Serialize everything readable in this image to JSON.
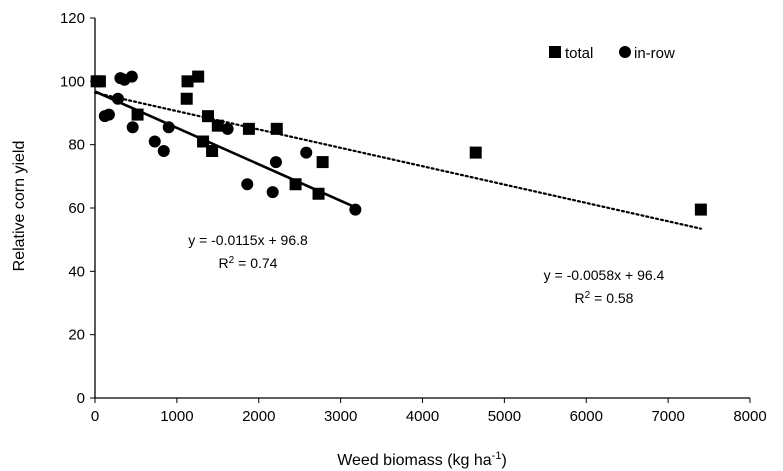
{
  "chart_data": {
    "type": "scatter",
    "title": "",
    "xlabel": "Weed biomass (kg ha",
    "xlabel_sup": "-1",
    "xlabel_end": ")",
    "ylabel": "Relative corn yield",
    "xlim": [
      0,
      8000
    ],
    "ylim": [
      0,
      120
    ],
    "x_ticks": [
      "0",
      "1000",
      "2000",
      "3000",
      "4000",
      "5000",
      "6000",
      "7000",
      "8000"
    ],
    "y_ticks": [
      "0",
      "20",
      "40",
      "60",
      "80",
      "100",
      "120"
    ],
    "grid": false,
    "legend_position": "top-right",
    "series": [
      {
        "name": "total",
        "marker": "square",
        "color": "#000000",
        "points": [
          {
            "x": 20,
            "y": 100
          },
          {
            "x": 60,
            "y": 100
          },
          {
            "x": 520,
            "y": 89.5
          },
          {
            "x": 1120,
            "y": 94.5
          },
          {
            "x": 1130,
            "y": 100
          },
          {
            "x": 1260,
            "y": 101.5
          },
          {
            "x": 1320,
            "y": 81
          },
          {
            "x": 1380,
            "y": 89
          },
          {
            "x": 1430,
            "y": 78
          },
          {
            "x": 1500,
            "y": 86
          },
          {
            "x": 1880,
            "y": 85
          },
          {
            "x": 2220,
            "y": 85
          },
          {
            "x": 2450,
            "y": 67.5
          },
          {
            "x": 2730,
            "y": 64.5
          },
          {
            "x": 2780,
            "y": 74.5
          },
          {
            "x": 4650,
            "y": 77.5
          },
          {
            "x": 7400,
            "y": 59.5
          }
        ],
        "trendline": {
          "style": "dotted",
          "slope": -0.0058,
          "intercept": 96.4,
          "x_range": [
            0,
            7400
          ]
        },
        "equation": "y = -0.0058x + 96.4",
        "r2_prefix": "R",
        "r2_sup": "2",
        "r2_value": " = 0.58"
      },
      {
        "name": "in-row",
        "marker": "circle",
        "color": "#000000",
        "points": [
          {
            "x": 120,
            "y": 89
          },
          {
            "x": 170,
            "y": 89.5
          },
          {
            "x": 280,
            "y": 94.5
          },
          {
            "x": 310,
            "y": 101
          },
          {
            "x": 360,
            "y": 100.5
          },
          {
            "x": 450,
            "y": 101.5
          },
          {
            "x": 460,
            "y": 85.5
          },
          {
            "x": 730,
            "y": 81
          },
          {
            "x": 840,
            "y": 78
          },
          {
            "x": 900,
            "y": 85.5
          },
          {
            "x": 1620,
            "y": 85
          },
          {
            "x": 1860,
            "y": 67.5
          },
          {
            "x": 2170,
            "y": 65
          },
          {
            "x": 2210,
            "y": 74.5
          },
          {
            "x": 2580,
            "y": 77.5
          },
          {
            "x": 3180,
            "y": 59.5
          }
        ],
        "trendline": {
          "style": "solid",
          "slope": -0.0115,
          "intercept": 96.8,
          "x_range": [
            0,
            3180
          ]
        },
        "equation": "y = -0.0115x + 96.8",
        "r2_prefix": "R",
        "r2_sup": "2",
        "r2_value": " = 0.74"
      }
    ]
  }
}
